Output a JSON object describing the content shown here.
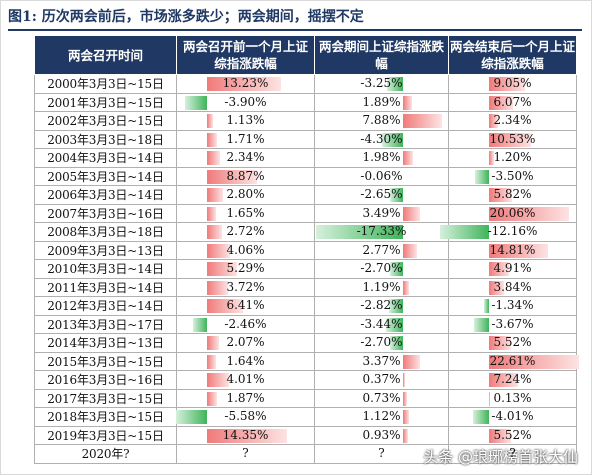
{
  "caption": {
    "label": "图1:",
    "title": "历次两会前后，市场涨多跌少；两会期间，摇摆不定"
  },
  "table": {
    "headers": [
      "两会召开时间",
      "两会召开前一个月上证综指涨跌幅",
      "两会期间上证综指涨跌幅",
      "两会结束后一个月上证综指涨跌幅"
    ],
    "rows": [
      {
        "date": "2000年3月3日~15日",
        "before": "13.23%",
        "during": "-3.25%",
        "after": "9.05%"
      },
      {
        "date": "2001年3月3日~15日",
        "before": "-3.90%",
        "during": "1.89%",
        "after": "6.07%"
      },
      {
        "date": "2002年3月3日~15日",
        "before": "1.13%",
        "during": "7.88%",
        "after": "2.34%"
      },
      {
        "date": "2003年3月3日~18日",
        "before": "1.71%",
        "during": "-4.30%",
        "after": "10.53%"
      },
      {
        "date": "2004年3月3日~14日",
        "before": "2.34%",
        "during": "1.98%",
        "after": "1.20%"
      },
      {
        "date": "2005年3月3日~14日",
        "before": "8.87%",
        "during": "-0.06%",
        "after": "-3.50%"
      },
      {
        "date": "2006年3月3日~14日",
        "before": "2.80%",
        "during": "-2.65%",
        "after": "5.82%"
      },
      {
        "date": "2007年3月3日~16日",
        "before": "1.65%",
        "during": "3.49%",
        "after": "20.06%"
      },
      {
        "date": "2008年3月3日~18日",
        "before": "2.72%",
        "during": "-17.33%",
        "after": "-12.16%"
      },
      {
        "date": "2009年3月3日~13日",
        "before": "4.06%",
        "during": "2.77%",
        "after": "14.81%"
      },
      {
        "date": "2010年3月3日~14日",
        "before": "5.29%",
        "during": "-2.70%",
        "after": "4.91%"
      },
      {
        "date": "2011年3月3日~14日",
        "before": "3.72%",
        "during": "1.19%",
        "after": "3.84%"
      },
      {
        "date": "2012年3月3日~14日",
        "before": "6.41%",
        "during": "-2.82%",
        "after": "-1.34%"
      },
      {
        "date": "2013年3月3日~17日",
        "before": "-2.46%",
        "during": "-3.44%",
        "after": "-3.67%"
      },
      {
        "date": "2014年3月3日~13日",
        "before": "2.07%",
        "during": "-2.70%",
        "after": "5.52%"
      },
      {
        "date": "2015年3月3日~15日",
        "before": "1.64%",
        "during": "3.37%",
        "after": "22.61%"
      },
      {
        "date": "2016年3月3日~16日",
        "before": "4.01%",
        "during": "0.37%",
        "after": "7.24%"
      },
      {
        "date": "2017年3月3日~15日",
        "before": "1.87%",
        "during": "0.73%",
        "after": "0.13%"
      },
      {
        "date": "2018年3月3日~15日",
        "before": "-5.58%",
        "during": "1.12%",
        "after": "-4.01%"
      },
      {
        "date": "2019年3月3日~15日",
        "before": "14.35%",
        "during": "0.93%",
        "after": "5.52%"
      },
      {
        "date": "2020年?",
        "before": "?",
        "during": "?",
        "after": "?"
      }
    ]
  },
  "watermark": "头条 @琅琊榜首张大仙",
  "colors": {
    "header_bg": "#1f3864",
    "positive_bar": "#f07a7a",
    "negative_bar": "#3fb45a"
  }
}
